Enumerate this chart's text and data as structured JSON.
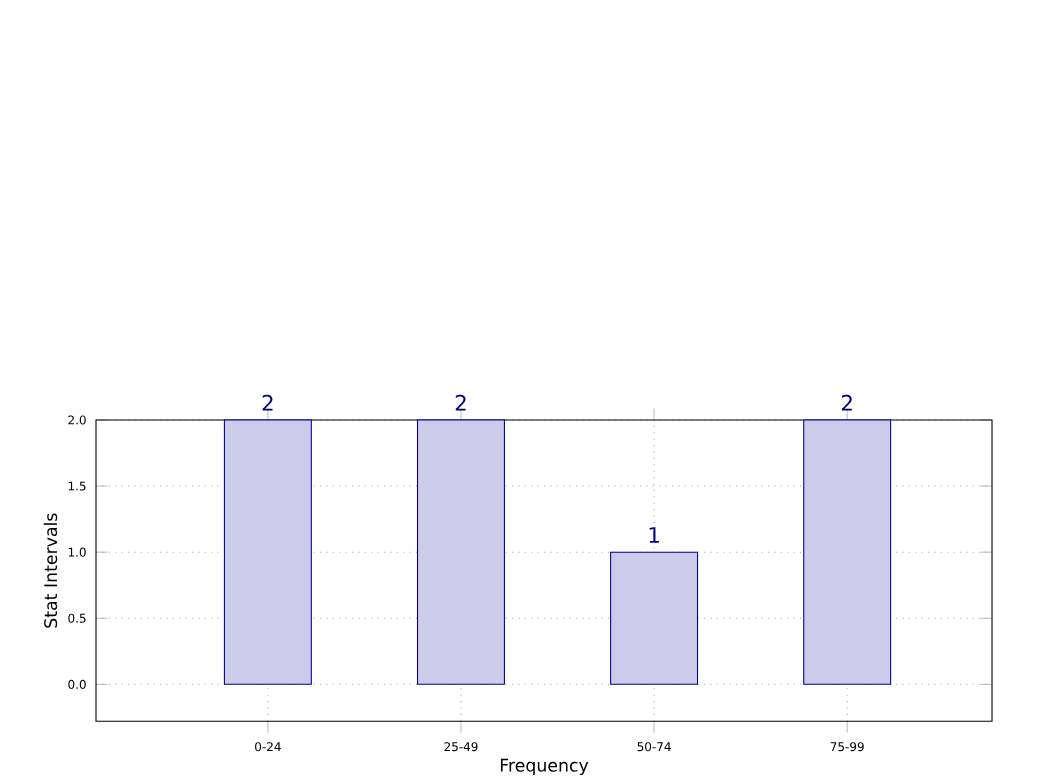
{
  "chart_data": {
    "type": "bar",
    "xlabel": "Frequency",
    "ylabel": "Stat Intervals",
    "categories": [
      "0-24",
      "25-49",
      "50-74",
      "75-99"
    ],
    "values": [
      2,
      2,
      1,
      2
    ],
    "color": "#ccccea",
    "ylim": [
      -0.28,
      2.0
    ],
    "yticks": [
      {
        "value": 0,
        "label": "0.0"
      },
      {
        "value": 0.5,
        "label": "0.5"
      },
      {
        "value": 1,
        "label": "1.0"
      },
      {
        "value": 1.5,
        "label": "1.5"
      },
      {
        "value": 2,
        "label": "2.0"
      }
    ],
    "grid": true,
    "data_labels": true
  }
}
